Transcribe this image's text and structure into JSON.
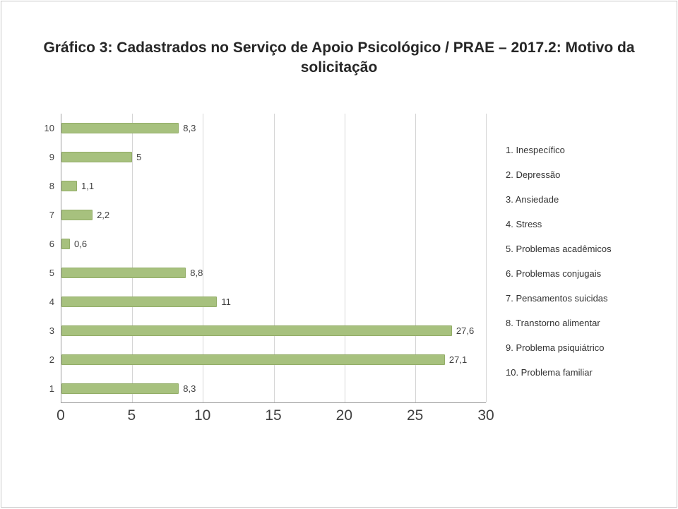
{
  "page": {
    "background": "#ffffff",
    "border_color": "#c6c6c6"
  },
  "chart_data": {
    "type": "bar",
    "orientation": "horizontal",
    "title": "Gráfico 3: Cadastrados no Serviço de Apoio Psicológico / PRAE – 2017.2: Motivo da solicitação",
    "categories": [
      "1",
      "2",
      "3",
      "4",
      "5",
      "6",
      "7",
      "8",
      "9",
      "10"
    ],
    "values": [
      8.3,
      27.1,
      27.6,
      11,
      8.8,
      0.6,
      2.2,
      1.1,
      5,
      8.3
    ],
    "value_labels": [
      "8,3",
      "27,1",
      "27,6",
      "11",
      "8,8",
      "0,6",
      "2,2",
      "1,1",
      "5",
      "8,3"
    ],
    "xlim": [
      0,
      30
    ],
    "x_ticks": [
      0,
      5,
      10,
      15,
      20,
      25,
      30
    ],
    "grid": "vertical",
    "bar_color": "#a7c17e",
    "bar_border_color": "#93ad68",
    "legend_position": "right",
    "legend": [
      "1. Inespecífico",
      "2. Depressão",
      "3. Ansiedade",
      "4. Stress",
      "5. Problemas acadêmicos",
      "6. Problemas conjugais",
      "7. Pensamentos suicidas",
      "8. Transtorno alimentar",
      "9. Problema psiquiátrico",
      "10. Problema familiar"
    ]
  }
}
